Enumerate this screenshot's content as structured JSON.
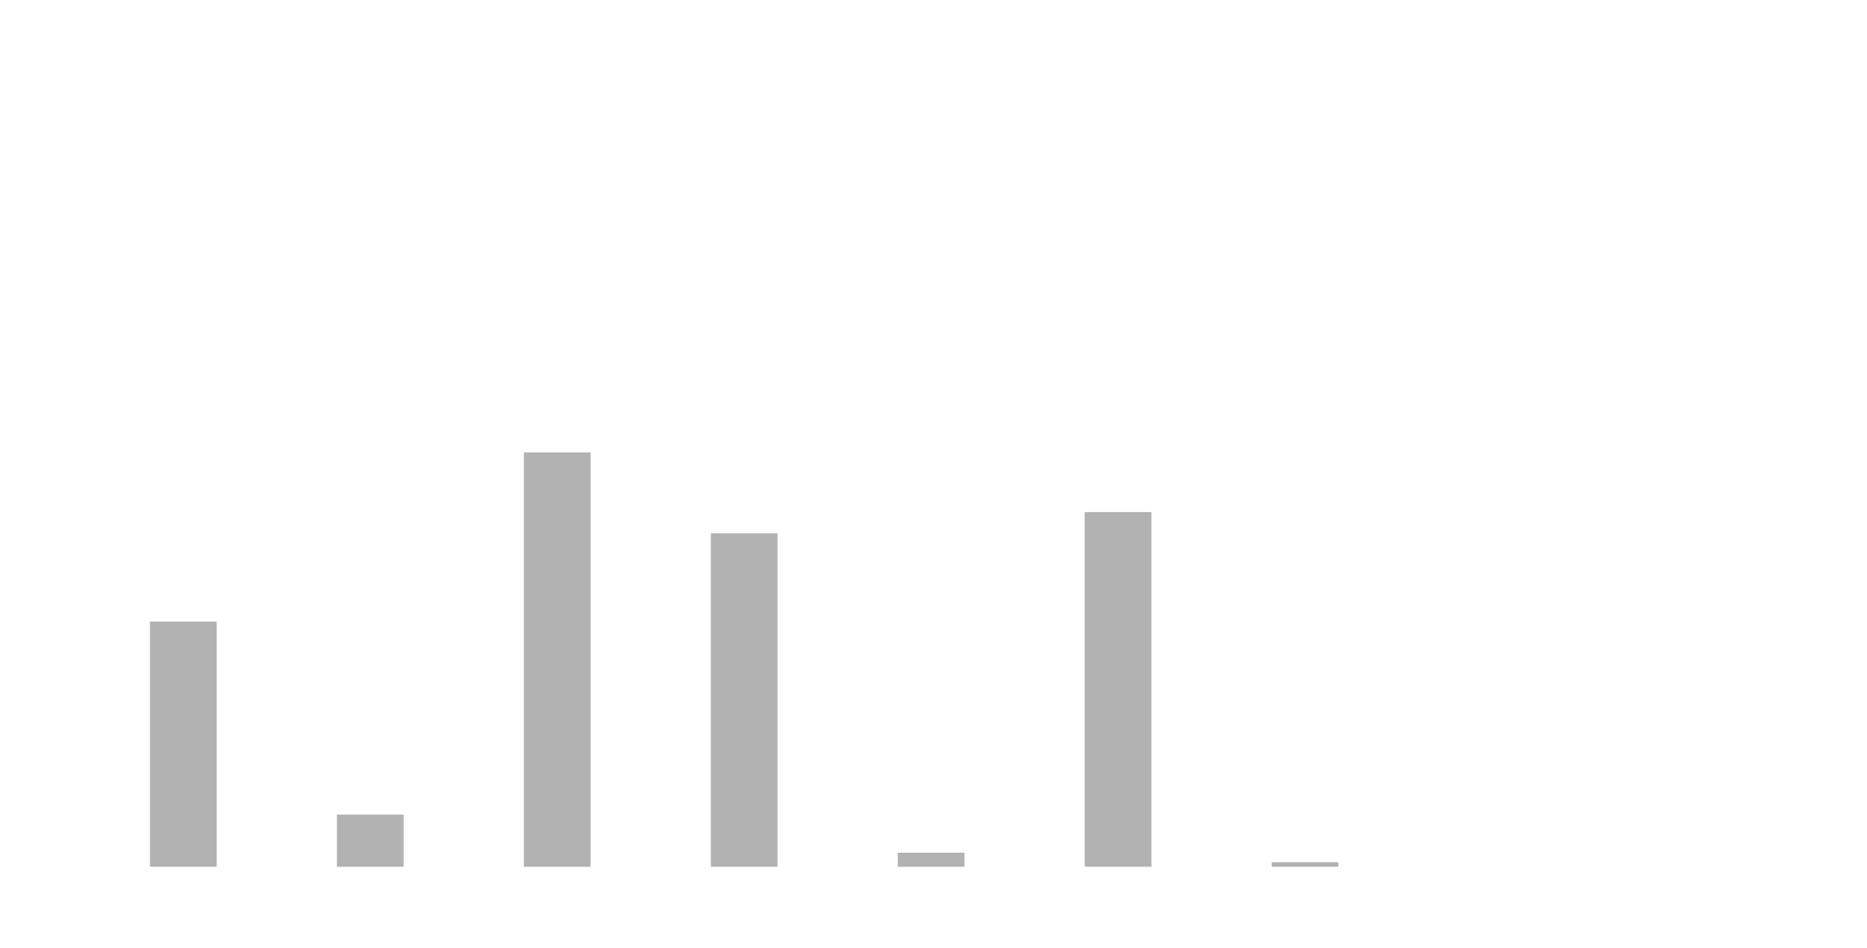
{
  "chart_data": {
    "type": "bar",
    "categories": [
      null,
      null,
      null,
      null,
      null,
      null,
      null
    ],
    "values": [
      59.2,
      12.6,
      100,
      80.5,
      3.4,
      85.6,
      1.1
    ],
    "color": "#b2b2b2",
    "ylim": [
      0,
      100
    ]
  }
}
